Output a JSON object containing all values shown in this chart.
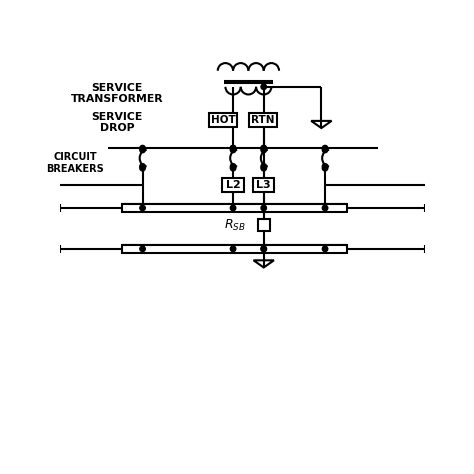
{
  "bg_color": "#ffffff",
  "line_color": "#000000",
  "lw": 1.5,
  "fig_w": 4.74,
  "fig_h": 4.74,
  "labels": {
    "service_transformer": "SERVICE\nTRANSFORMER",
    "service_drop": "SERVICE\nDROP",
    "circuit_breakers": "CIRCUIT\nBREAKERS",
    "hot": "HOT",
    "rtn": "RTN",
    "l2": "L2",
    "l3": "L3",
    "rsb": "$R_{SB}$"
  },
  "xl": 0.0,
  "xr": 10.0,
  "yb": 0.0,
  "yt": 10.0
}
